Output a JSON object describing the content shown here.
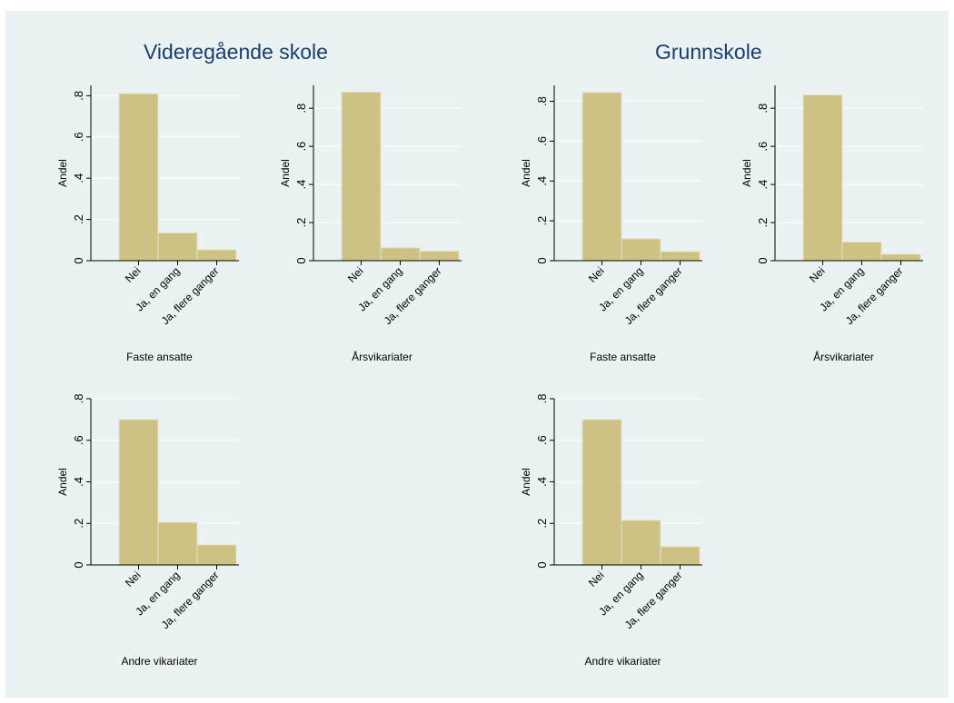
{
  "groups": [
    {
      "title": "Videregående skole"
    },
    {
      "title": "Grunnskole"
    }
  ],
  "colors": {
    "background": "#eaf2f3",
    "bar_fill": "#cdc284",
    "bar_edge": "#e8e3c6",
    "grid": "#ffffff",
    "title": "#1a3e6e"
  },
  "chart_data": [
    {
      "type": "bar",
      "group": "Videregående skole",
      "xlabel": "Faste ansatte",
      "ylabel": "Andel",
      "categories": [
        "Nei",
        "Ja, en gang",
        "Ja, flere ganger"
      ],
      "values": [
        0.81,
        0.135,
        0.053
      ],
      "ylim": [
        0,
        0.85
      ],
      "yticks": [
        0,
        0.2,
        0.4,
        0.6,
        0.8
      ],
      "ytick_labels": [
        "0",
        ".2",
        ".4",
        ".6",
        ".8"
      ],
      "grid": true
    },
    {
      "type": "bar",
      "group": "Videregående skole",
      "xlabel": "Årsvikariater",
      "ylabel": "Andel",
      "categories": [
        "Nei",
        "Ja, en gang",
        "Ja, flere ganger"
      ],
      "values": [
        0.885,
        0.068,
        0.05
      ],
      "ylim": [
        0,
        0.92
      ],
      "yticks": [
        0,
        0.2,
        0.4,
        0.6,
        0.8
      ],
      "ytick_labels": [
        "0",
        ".2",
        ".4",
        ".6",
        ".8"
      ],
      "grid": true
    },
    {
      "type": "bar",
      "group": "Grunnskole",
      "xlabel": "Faste ansatte",
      "ylabel": "Andel",
      "categories": [
        "Nei",
        "Ja, en gang",
        "Ja, flere ganger"
      ],
      "values": [
        0.845,
        0.11,
        0.046
      ],
      "ylim": [
        0,
        0.88
      ],
      "yticks": [
        0,
        0.2,
        0.4,
        0.6,
        0.8
      ],
      "ytick_labels": [
        "0",
        ".2",
        ".4",
        ".6",
        ".8"
      ],
      "grid": true
    },
    {
      "type": "bar",
      "group": "Grunnskole",
      "xlabel": "Årsvikariater",
      "ylabel": "Andel",
      "categories": [
        "Nei",
        "Ja, en gang",
        "Ja, flere ganger"
      ],
      "values": [
        0.87,
        0.098,
        0.034
      ],
      "ylim": [
        0,
        0.92
      ],
      "yticks": [
        0,
        0.2,
        0.4,
        0.6,
        0.8
      ],
      "ytick_labels": [
        "0",
        ".2",
        ".4",
        ".6",
        ".8"
      ],
      "grid": true
    },
    {
      "type": "bar",
      "group": "Videregående skole",
      "xlabel": "Andre vikariater",
      "ylabel": "Andel",
      "categories": [
        "Nei",
        "Ja, en gang",
        "Ja, flere ganger"
      ],
      "values": [
        0.7,
        0.205,
        0.097
      ],
      "ylim": [
        0,
        0.8
      ],
      "yticks": [
        0,
        0.2,
        0.4,
        0.6,
        0.8
      ],
      "ytick_labels": [
        "0",
        ".2",
        ".4",
        ".6",
        ".8"
      ],
      "grid": true
    },
    {
      "type": "bar",
      "group": "Grunnskole",
      "xlabel": "Andre vikariater",
      "ylabel": "Andel",
      "categories": [
        "Nei",
        "Ja, en gang",
        "Ja, flere ganger"
      ],
      "values": [
        0.7,
        0.215,
        0.088
      ],
      "ylim": [
        0,
        0.8
      ],
      "yticks": [
        0,
        0.2,
        0.4,
        0.6,
        0.8
      ],
      "ytick_labels": [
        "0",
        ".2",
        ".4",
        ".6",
        ".8"
      ],
      "grid": true
    }
  ]
}
